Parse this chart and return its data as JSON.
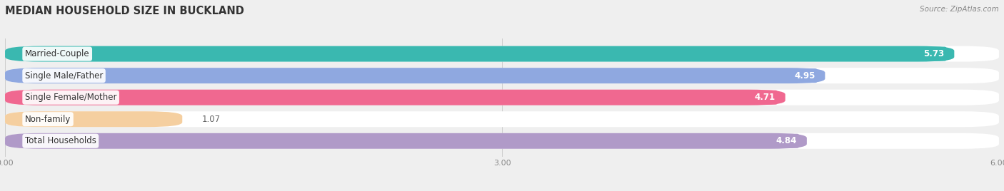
{
  "title": "MEDIAN HOUSEHOLD SIZE IN BUCKLAND",
  "source": "Source: ZipAtlas.com",
  "categories": [
    "Married-Couple",
    "Single Male/Father",
    "Single Female/Mother",
    "Non-family",
    "Total Households"
  ],
  "values": [
    5.73,
    4.95,
    4.71,
    1.07,
    4.84
  ],
  "bar_colors": [
    "#3ab8b0",
    "#8fa8e0",
    "#f06890",
    "#f5cfa0",
    "#b09ac8"
  ],
  "xlim": [
    0,
    6.0
  ],
  "xticks": [
    0.0,
    3.0,
    6.0
  ],
  "xtick_labels": [
    "0.00",
    "3.00",
    "6.00"
  ],
  "bar_height": 0.72,
  "bar_gap": 0.28,
  "background_color": "#efefef",
  "label_fontsize": 8.5,
  "value_fontsize": 8.5,
  "title_fontsize": 10.5
}
